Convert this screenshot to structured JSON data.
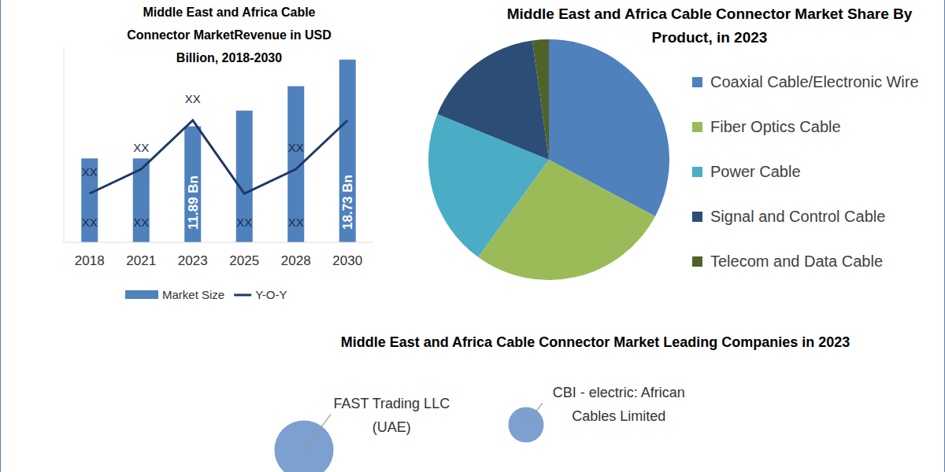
{
  "chart_data": [
    {
      "type": "bar",
      "title": "Middle East and Africa Cable Connector MarketRevenue in USD Billion, 2018-2030",
      "categories": [
        "2018",
        "2021",
        "2023",
        "2025",
        "2028",
        "2030"
      ],
      "series": [
        {
          "name": "Market Size",
          "type": "bar",
          "color": "#4f81bd",
          "values": [
            8.6,
            8.6,
            11.89,
            13.5,
            16,
            18.73
          ],
          "value_labels": [
            "XX",
            "XX",
            "11.89 Bn",
            "XX",
            "XX",
            "18.73 Bn"
          ]
        },
        {
          "name": "Y-O-Y",
          "type": "line",
          "color": "#1f3864",
          "axis": "y2",
          "values": [
            4,
            6,
            10,
            4,
            6,
            10
          ],
          "value_labels": [
            "XX",
            "XX",
            "XX",
            null,
            "XX",
            null
          ]
        }
      ],
      "ylim": [
        0,
        20
      ],
      "y2lim": [
        0,
        16
      ],
      "tick_labels": "x",
      "legend": "bottom",
      "data_labels": true
    },
    {
      "type": "pie",
      "title": "Middle East and Africa Cable Connector Market Share By Product, in 2023",
      "categories": [
        "Coaxial Cable/Electronic Wire",
        "Fiber Optics Cable",
        "Power Cable",
        "Signal and Control Cable",
        "Telecom and Data Cable"
      ],
      "values": [
        32.8,
        27.2,
        21.2,
        16.6,
        2.2
      ],
      "colors": [
        "#4f81bd",
        "#9bbb59",
        "#4bacc6",
        "#2c4d75",
        "#4f6228"
      ],
      "legend": "right"
    },
    {
      "type": "bubble",
      "title": "Middle East and Africa Cable Connector Market Leading Companies in 2023",
      "categories": [
        "FAST Trading LLC (UAE)",
        "CBI - electric: African Cables Limited"
      ],
      "values": [
        14.5,
        5.3
      ],
      "color": "#7da0d0"
    }
  ]
}
